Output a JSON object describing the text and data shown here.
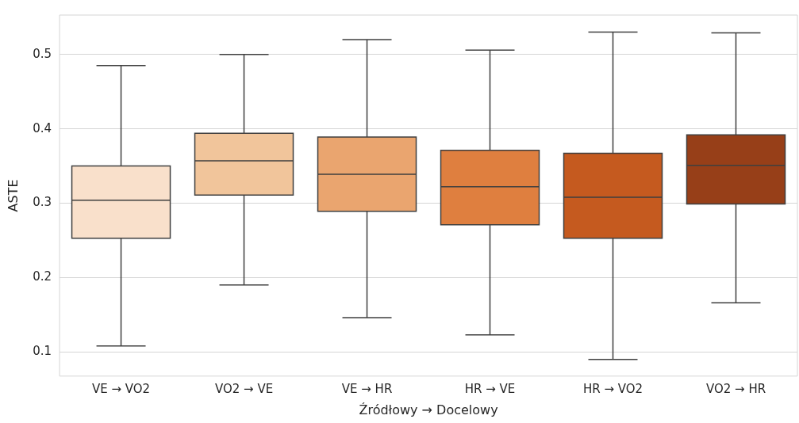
{
  "chart_data": {
    "type": "box",
    "xlabel": "Źródłowy → Docelowy",
    "ylabel": "ASTE",
    "categories": [
      "VE → VO2",
      "VO2 → VE",
      "VE → HR",
      "HR → VE",
      "HR → VO2",
      "VO2 → HR"
    ],
    "colors": [
      "#f9e0cb",
      "#f1c59b",
      "#eaa56f",
      "#df7f3f",
      "#c55a1f",
      "#973f18"
    ],
    "boxes": [
      {
        "low": 0.108,
        "q1": 0.253,
        "median": 0.304,
        "q3": 0.35,
        "high": 0.485
      },
      {
        "low": 0.19,
        "q1": 0.311,
        "median": 0.357,
        "q3": 0.394,
        "high": 0.5
      },
      {
        "low": 0.146,
        "q1": 0.289,
        "median": 0.339,
        "q3": 0.389,
        "high": 0.52
      },
      {
        "low": 0.123,
        "q1": 0.271,
        "median": 0.322,
        "q3": 0.371,
        "high": 0.506
      },
      {
        "low": 0.09,
        "q1": 0.253,
        "median": 0.308,
        "q3": 0.367,
        "high": 0.53
      },
      {
        "low": 0.166,
        "q1": 0.299,
        "median": 0.351,
        "q3": 0.392,
        "high": 0.529
      }
    ],
    "ylim": [
      0.0675,
      0.553
    ],
    "yticks": [
      0.1,
      0.2,
      0.3,
      0.4,
      0.5
    ],
    "grid": "y"
  }
}
